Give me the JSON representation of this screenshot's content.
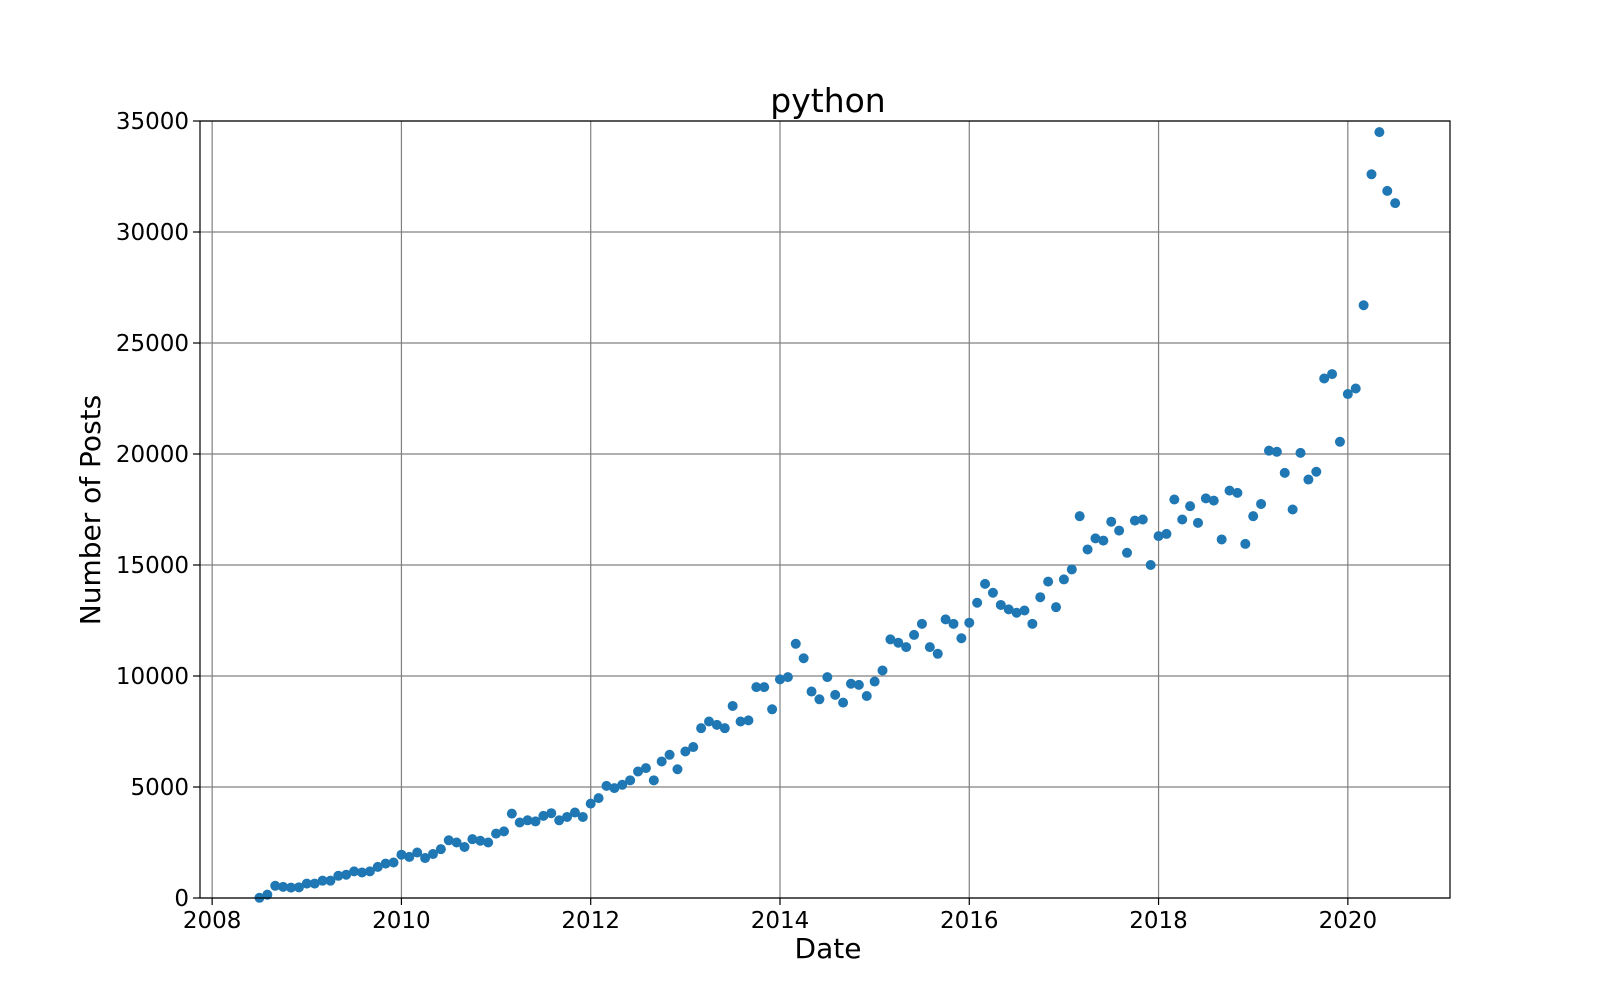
{
  "chart_data": {
    "type": "scatter",
    "title": "python",
    "xlabel": "Date",
    "ylabel": "Number of Posts",
    "xlim": [
      "2007-11-15",
      "2021-01-30"
    ],
    "ylim": [
      0,
      35000
    ],
    "grid": true,
    "marker_color": "#1f77b4",
    "x_ticks": [
      "2008",
      "2010",
      "2012",
      "2014",
      "2016",
      "2018",
      "2020"
    ],
    "y_ticks": [
      0,
      5000,
      10000,
      15000,
      20000,
      25000,
      30000,
      35000
    ],
    "series": [
      {
        "x": [
          "2008-07",
          "2008-08",
          "2008-09",
          "2008-10",
          "2008-11",
          "2008-12",
          "2009-01",
          "2009-02",
          "2009-03",
          "2009-04",
          "2009-05",
          "2009-06",
          "2009-07",
          "2009-08",
          "2009-09",
          "2009-10",
          "2009-11",
          "2009-12",
          "2010-01",
          "2010-02",
          "2010-03",
          "2010-04",
          "2010-05",
          "2010-06",
          "2010-07",
          "2010-08",
          "2010-09",
          "2010-10",
          "2010-11",
          "2010-12",
          "2011-01",
          "2011-02",
          "2011-03",
          "2011-04",
          "2011-05",
          "2011-06",
          "2011-07",
          "2011-08",
          "2011-09",
          "2011-10",
          "2011-11",
          "2011-12",
          "2012-01",
          "2012-02",
          "2012-03",
          "2012-04",
          "2012-05",
          "2012-06",
          "2012-07",
          "2012-08",
          "2012-09",
          "2012-10",
          "2012-11",
          "2012-12",
          "2013-01",
          "2013-02",
          "2013-03",
          "2013-04",
          "2013-05",
          "2013-06",
          "2013-07",
          "2013-08",
          "2013-09",
          "2013-10",
          "2013-11",
          "2013-12",
          "2014-01",
          "2014-02",
          "2014-03",
          "2014-04",
          "2014-05",
          "2014-06",
          "2014-07",
          "2014-08",
          "2014-09",
          "2014-10",
          "2014-11",
          "2014-12",
          "2015-01",
          "2015-02",
          "2015-03",
          "2015-04",
          "2015-05",
          "2015-06",
          "2015-07",
          "2015-08",
          "2015-09",
          "2015-10",
          "2015-11",
          "2015-12",
          "2016-01",
          "2016-02",
          "2016-03",
          "2016-04",
          "2016-05",
          "2016-06",
          "2016-07",
          "2016-08",
          "2016-09",
          "2016-10",
          "2016-11",
          "2016-12",
          "2017-01",
          "2017-02",
          "2017-03",
          "2017-04",
          "2017-05",
          "2017-06",
          "2017-07",
          "2017-08",
          "2017-09",
          "2017-10",
          "2017-11",
          "2017-12",
          "2018-01",
          "2018-02",
          "2018-03",
          "2018-04",
          "2018-05",
          "2018-06",
          "2018-07",
          "2018-08",
          "2018-09",
          "2018-10",
          "2018-11",
          "2018-12",
          "2019-01",
          "2019-02",
          "2019-03",
          "2019-04",
          "2019-05",
          "2019-06",
          "2019-07",
          "2019-08",
          "2019-09",
          "2019-10",
          "2019-11",
          "2019-12",
          "2020-01",
          "2020-02",
          "2020-03",
          "2020-04",
          "2020-05",
          "2020-06",
          "2020-07"
        ],
        "y": [
          10,
          150,
          550,
          500,
          470,
          480,
          650,
          650,
          780,
          780,
          1000,
          1050,
          1200,
          1150,
          1200,
          1400,
          1550,
          1600,
          1950,
          1850,
          2050,
          1800,
          1980,
          2200,
          2600,
          2500,
          2300,
          2650,
          2580,
          2500,
          2900,
          3000,
          3800,
          3400,
          3500,
          3450,
          3700,
          3820,
          3500,
          3650,
          3850,
          3650,
          4250,
          4500,
          5050,
          4950,
          5100,
          5300,
          5700,
          5850,
          5300,
          6150,
          6450,
          5800,
          6600,
          6800,
          7650,
          7950,
          7800,
          7650,
          8650,
          7950,
          8000,
          9500,
          9500,
          8500,
          9850,
          9950,
          11450,
          10800,
          9300,
          8950,
          9950,
          9150,
          8800,
          9650,
          9600,
          9100,
          9750,
          10250,
          11650,
          11500,
          11300,
          11850,
          12350,
          11300,
          11000,
          12550,
          12350,
          11700,
          12400,
          13300,
          14150,
          13750,
          13200,
          13000,
          12850,
          12950,
          12350,
          13550,
          14250,
          13100,
          14350,
          14800,
          17200,
          15700,
          16200,
          16100,
          16950,
          16550,
          15550,
          17000,
          17050,
          15000,
          16300,
          16400,
          17950,
          17050,
          17650,
          16900,
          18000,
          17900,
          16150,
          18350,
          18250,
          15950,
          17200,
          17750,
          20150,
          20100,
          19150,
          17500,
          20050,
          18850,
          19200,
          23400,
          23600,
          20550,
          22700,
          22950,
          26700,
          32600,
          34500,
          31850,
          31300
        ]
      }
    ]
  }
}
